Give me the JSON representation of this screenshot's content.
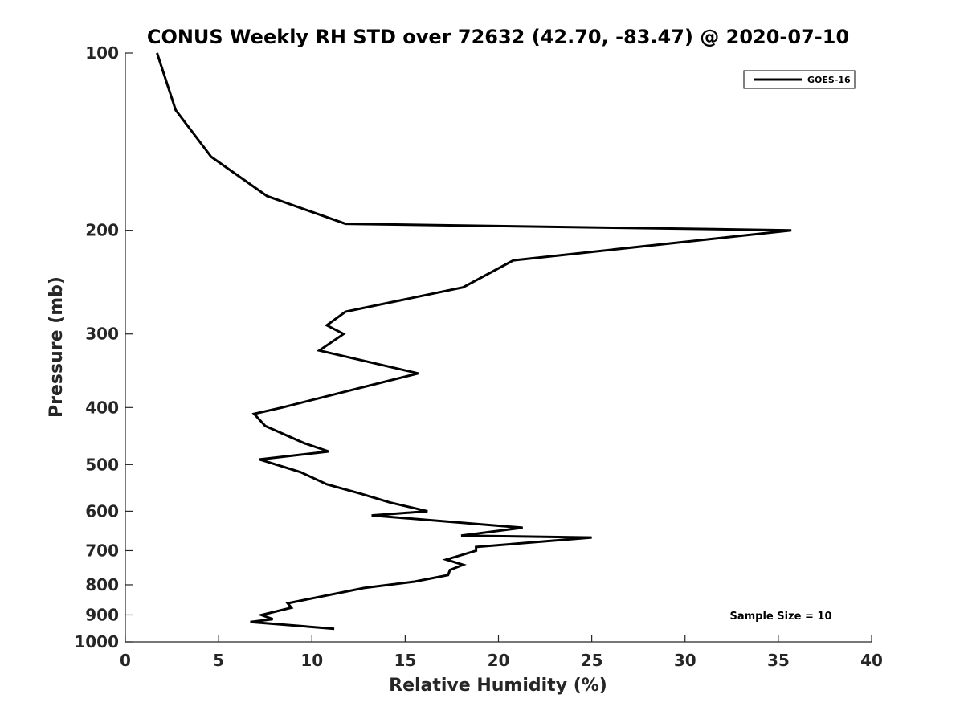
{
  "chart_data": {
    "type": "line",
    "title": "CONUS Weekly RH STD over 72632 (42.70, -83.47) @ 2020-07-10",
    "xlabel": "Relative Humidity (%)",
    "ylabel": "Pressure (mb)",
    "xlim": [
      0,
      40
    ],
    "ylim": [
      100,
      1000
    ],
    "y_scale": "log",
    "y_reversed": true,
    "x_ticks": [
      0,
      5,
      10,
      15,
      20,
      25,
      30,
      35,
      40
    ],
    "y_ticks": [
      100,
      200,
      300,
      400,
      500,
      600,
      700,
      800,
      900,
      1000
    ],
    "grid": false,
    "legend_position": "top-right",
    "series": [
      {
        "name": "GOES-16",
        "color": "#000000",
        "x": [
          1.7,
          2.7,
          4.6,
          7.6,
          11.8,
          35.7,
          20.8,
          18.1,
          11.8,
          10.8,
          11.7,
          10.4,
          15.7,
          11.9,
          8.4,
          6.9,
          7.5,
          9.6,
          10.9,
          7.2,
          9.4,
          10.8,
          12.6,
          14.2,
          16.2,
          13.2,
          21.3,
          18.0,
          25.0,
          18.8,
          18.8,
          17.2,
          18.1,
          17.4,
          17.3,
          15.5,
          12.8,
          8.7,
          8.9,
          7.3,
          7.9,
          6.7,
          11.2
        ],
        "y": [
          100,
          125,
          150,
          175,
          195,
          200,
          225,
          250,
          275,
          290,
          300,
          320,
          350,
          375,
          400,
          410,
          430,
          460,
          475,
          490,
          515,
          540,
          560,
          580,
          600,
          610,
          640,
          660,
          665,
          690,
          700,
          725,
          740,
          755,
          770,
          790,
          810,
          860,
          875,
          900,
          915,
          925,
          950
        ]
      }
    ],
    "annotations": [
      "Sample Size = 10"
    ]
  }
}
